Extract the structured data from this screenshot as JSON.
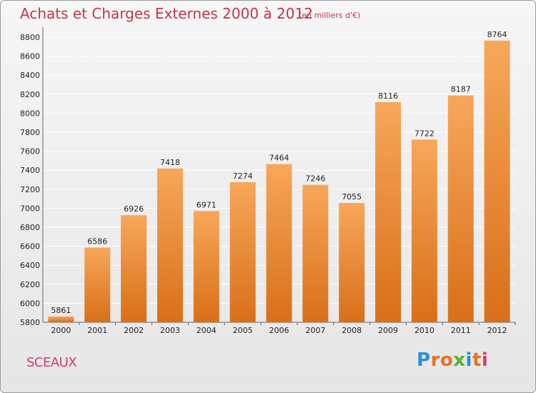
{
  "title": "Achats et Charges Externes 2000 à 2012",
  "subtitle": "(en milliers d'€)",
  "commune": "SCEAUX",
  "logo": {
    "letters": [
      "P",
      "r",
      "o",
      "x",
      "i",
      "t",
      "i"
    ],
    "colors": [
      "#2a8fd6",
      "#e8731e",
      "#e8731e",
      "#5ab22c",
      "#2a8fd6",
      "#e8731e",
      "#d23b73"
    ]
  },
  "colors": {
    "title": "#c4364b",
    "bar_top": "#f7a75a",
    "bar_bottom": "#d96f18",
    "grid": "#ffffff"
  },
  "chart_data": {
    "type": "bar",
    "categories": [
      "2000",
      "2001",
      "2002",
      "2003",
      "2004",
      "2005",
      "2006",
      "2007",
      "2008",
      "2009",
      "2010",
      "2011",
      "2012"
    ],
    "values": [
      5861,
      6586,
      6926,
      7418,
      6971,
      7274,
      7464,
      7246,
      7055,
      8116,
      7722,
      8187,
      8764
    ],
    "data_labels": [
      "5861",
      "6586",
      "6926",
      "7418",
      "6971",
      "7274",
      "7464",
      "7246",
      "7055",
      "8116",
      "7722",
      "8187",
      "8764"
    ],
    "yticks": [
      5800,
      6000,
      6200,
      6400,
      6600,
      6800,
      7000,
      7200,
      7400,
      7600,
      7800,
      8000,
      8200,
      8400,
      8600,
      8800
    ],
    "ylim": [
      5800,
      8850
    ],
    "grid": true,
    "legend": "none"
  }
}
